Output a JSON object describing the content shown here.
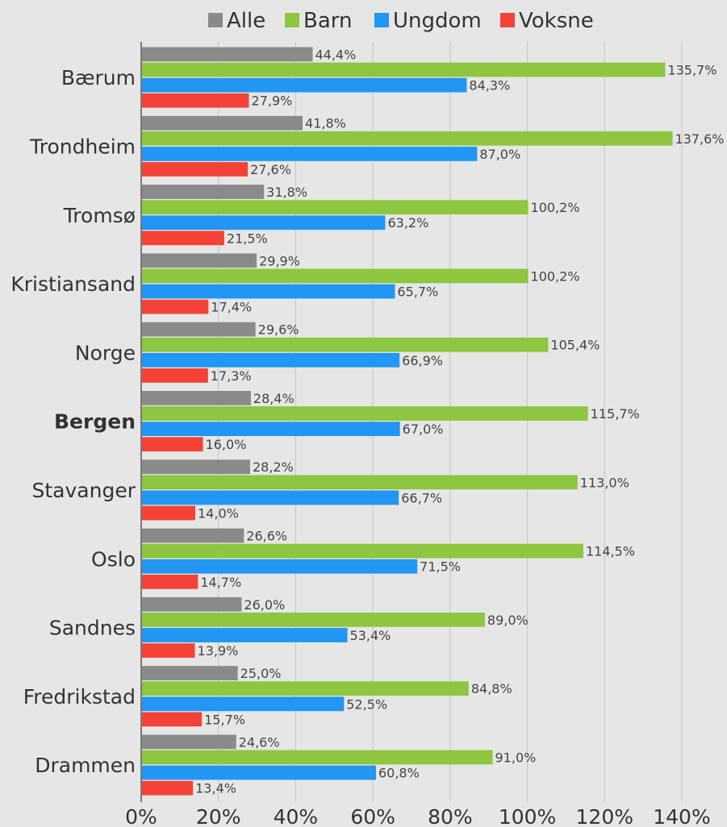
{
  "chart_data": {
    "type": "bar",
    "orientation": "horizontal",
    "categories": [
      "Bærum",
      "Trondheim",
      "Tromsø",
      "Kristiansand",
      "Norge",
      "Bergen",
      "Stavanger",
      "Oslo",
      "Sandnes",
      "Fredrikstad",
      "Drammen"
    ],
    "highlighted_category": "Bergen",
    "series": [
      {
        "name": "Alle",
        "color": "#8a8a8a",
        "values": [
          44.4,
          41.8,
          31.8,
          29.9,
          29.6,
          28.4,
          28.2,
          26.6,
          26.0,
          25.0,
          24.6
        ]
      },
      {
        "name": "Barn",
        "color": "#8dc63f",
        "values": [
          135.7,
          137.6,
          100.2,
          100.2,
          105.4,
          115.7,
          113.0,
          114.5,
          89.0,
          84.8,
          91.0
        ]
      },
      {
        "name": "Ungdom",
        "color": "#2196f3",
        "values": [
          84.3,
          87.0,
          63.2,
          65.7,
          66.9,
          67.0,
          66.7,
          71.5,
          53.4,
          52.5,
          60.8
        ]
      },
      {
        "name": "Voksne",
        "color": "#f44336",
        "values": [
          27.9,
          27.6,
          21.5,
          17.4,
          17.3,
          16.0,
          14.0,
          14.7,
          13.9,
          15.7,
          13.4
        ]
      }
    ],
    "value_labels": [
      [
        "44,4%",
        "41,8%",
        "31,8%",
        "29,9%",
        "29,6%",
        "28,4%",
        "28,2%",
        "26,6%",
        "26,0%",
        "25,0%",
        "24,6%"
      ],
      [
        "135,7%",
        "137,6%",
        "100,2%",
        "100,2%",
        "105,4%",
        "115,7%",
        "113,0%",
        "114,5%",
        "89,0%",
        "84,8%",
        "91,0%"
      ],
      [
        "84,3%",
        "87,0%",
        "63,2%",
        "65,7%",
        "66,9%",
        "67,0%",
        "66,7%",
        "71,5%",
        "53,4%",
        "52,5%",
        "60,8%"
      ],
      [
        "27,9%",
        "27,6%",
        "21,5%",
        "17,4%",
        "17,3%",
        "16,0%",
        "14,0%",
        "14,7%",
        "13,9%",
        "15,7%",
        "13,4%"
      ]
    ],
    "xlim": [
      0,
      140
    ],
    "xticks": [
      0,
      20,
      40,
      60,
      80,
      100,
      120,
      140
    ],
    "xtick_labels": [
      "0%",
      "20%",
      "40%",
      "60%",
      "80%",
      "100%",
      "120%",
      "140%"
    ],
    "grid": "vertical",
    "legend_position": "top",
    "background": "#e6e6e6",
    "gridline_color": "#c9c9c9"
  }
}
